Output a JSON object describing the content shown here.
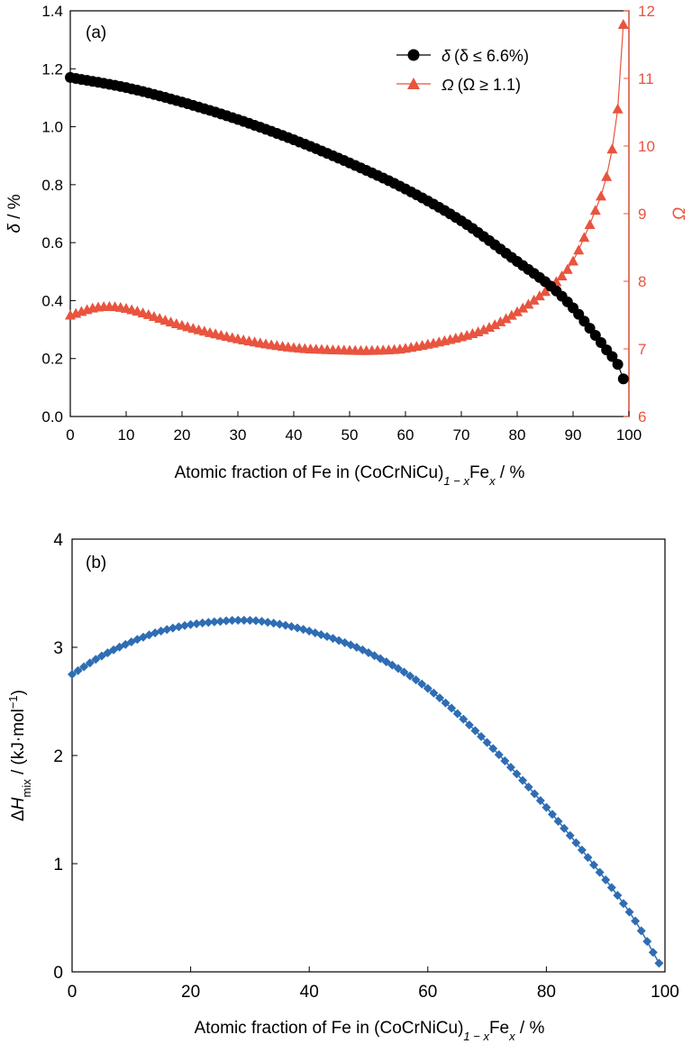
{
  "chart_data": [
    {
      "panel_label": "(a)",
      "type": "line",
      "xlabel": {
        "text": "Atomic fraction of Fe in (CoCrNiCu)",
        "sub": "1 − x",
        "text2": "Fe",
        "sub2": "x",
        "text3": " / %"
      },
      "ylabel": {
        "symbol": "δ",
        "unit": " / %"
      },
      "y2label": {
        "symbol": "Ω"
      },
      "xlim": [
        0,
        100
      ],
      "ylim": [
        0,
        1.4
      ],
      "y2lim": [
        6,
        12
      ],
      "xticks": [
        "0",
        "10",
        "20",
        "30",
        "40",
        "50",
        "60",
        "70",
        "80",
        "90",
        "100"
      ],
      "yticks": [
        "0.0",
        "0.2",
        "0.4",
        "0.6",
        "0.8",
        "1.0",
        "1.2",
        "1.4"
      ],
      "y2ticks": [
        "6",
        "7",
        "8",
        "9",
        "10",
        "11",
        "12"
      ],
      "legend_position": "top-right",
      "series": [
        {
          "name": "δ (δ ≤ 6.6%)",
          "legend_symbol": "δ",
          "legend_rest": "(δ ≤ 6.6%)",
          "axis": "left",
          "marker": "circle",
          "color": "#000000",
          "x": [
            0,
            10,
            20,
            30,
            40,
            50,
            60,
            70,
            80,
            86,
            90,
            94,
            96,
            98,
            99
          ],
          "y": [
            1.17,
            1.135,
            1.085,
            1.025,
            0.955,
            0.875,
            0.785,
            0.675,
            0.535,
            0.45,
            0.375,
            0.28,
            0.23,
            0.18,
            0.13
          ]
        },
        {
          "name": "Ω (Ω ≥ 1.1)",
          "legend_symbol": "Ω",
          "legend_rest": "(Ω ≥ 1.1)",
          "axis": "right",
          "marker": "triangle",
          "color": "#e8543f",
          "x": [
            0,
            5,
            10,
            20,
            30,
            40,
            50,
            55,
            60,
            70,
            75,
            80,
            85,
            88,
            90,
            92,
            94,
            96,
            98,
            99
          ],
          "y": [
            7.5,
            7.62,
            7.6,
            7.35,
            7.15,
            7.02,
            6.98,
            6.98,
            7.01,
            7.18,
            7.32,
            7.55,
            7.85,
            8.08,
            8.3,
            8.65,
            9.05,
            9.55,
            10.55,
            11.8
          ]
        }
      ]
    },
    {
      "panel_label": "(b)",
      "type": "line",
      "xlabel": {
        "text": "Atomic fraction of Fe in (CoCrNiCu)",
        "sub": "1 − x",
        "text2": "Fe",
        "sub2": "x",
        "text3": " / %"
      },
      "ylabel": {
        "prefix": "Δ",
        "symbol": "H",
        "sub": "mix",
        "unit": " / (kJ·mol",
        "sup": "−1",
        "close": ")"
      },
      "xlim": [
        0,
        100
      ],
      "ylim": [
        0,
        4
      ],
      "xticks": [
        "0",
        "20",
        "40",
        "60",
        "80",
        "100"
      ],
      "yticks": [
        "0",
        "1",
        "2",
        "3",
        "4"
      ],
      "series": [
        {
          "axis": "left",
          "marker": "diamond",
          "color": "#2e6db4",
          "x": [
            0,
            5,
            10,
            15,
            20,
            25,
            28,
            32,
            40,
            50,
            60,
            70,
            80,
            90,
            95,
            99
          ],
          "y": [
            2.75,
            2.92,
            3.05,
            3.15,
            3.21,
            3.24,
            3.25,
            3.24,
            3.15,
            2.95,
            2.62,
            2.12,
            1.52,
            0.85,
            0.47,
            0.08
          ]
        }
      ]
    }
  ]
}
